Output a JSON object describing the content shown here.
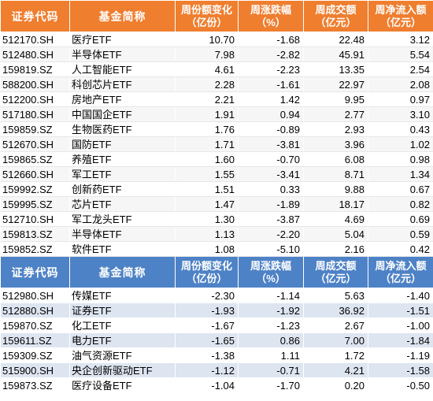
{
  "header1": {
    "code": "证券代码",
    "name": "基金简称",
    "share_change": "周份额变化（亿份）",
    "change_pct": "周涨跌幅（%）",
    "volume": "周成交额（亿元）",
    "net_inflow": "周净流入额（亿元）"
  },
  "rows1": [
    {
      "code": "512170.SH",
      "name": "医疗ETF",
      "share_change": "10.70",
      "change_pct": "-1.68",
      "volume": "22.48",
      "net_inflow": "3.12"
    },
    {
      "code": "512480.SH",
      "name": "半导体ETF",
      "share_change": "7.98",
      "change_pct": "-2.82",
      "volume": "45.91",
      "net_inflow": "5.54"
    },
    {
      "code": "159819.SZ",
      "name": "人工智能ETF",
      "share_change": "4.61",
      "change_pct": "-2.23",
      "volume": "13.35",
      "net_inflow": "2.54"
    },
    {
      "code": "588200.SH",
      "name": "科创芯片ETF",
      "share_change": "2.28",
      "change_pct": "-1.61",
      "volume": "22.97",
      "net_inflow": "2.08"
    },
    {
      "code": "512200.SH",
      "name": "房地产ETF",
      "share_change": "2.21",
      "change_pct": "1.42",
      "volume": "9.95",
      "net_inflow": "0.97"
    },
    {
      "code": "517180.SH",
      "name": "中国国企ETF",
      "share_change": "1.91",
      "change_pct": "0.94",
      "volume": "2.77",
      "net_inflow": "3.10"
    },
    {
      "code": "159859.SZ",
      "name": "生物医药ETF",
      "share_change": "1.76",
      "change_pct": "-0.89",
      "volume": "2.93",
      "net_inflow": "0.43"
    },
    {
      "code": "512670.SH",
      "name": "国防ETF",
      "share_change": "1.71",
      "change_pct": "-3.81",
      "volume": "3.96",
      "net_inflow": "1.02"
    },
    {
      "code": "159865.SZ",
      "name": "养殖ETF",
      "share_change": "1.60",
      "change_pct": "-0.70",
      "volume": "6.08",
      "net_inflow": "0.98"
    },
    {
      "code": "512660.SH",
      "name": "军工ETF",
      "share_change": "1.55",
      "change_pct": "-3.41",
      "volume": "8.71",
      "net_inflow": "1.34"
    },
    {
      "code": "159992.SZ",
      "name": "创新药ETF",
      "share_change": "1.51",
      "change_pct": "0.33",
      "volume": "9.88",
      "net_inflow": "0.67"
    },
    {
      "code": "159995.SZ",
      "name": "芯片ETF",
      "share_change": "1.47",
      "change_pct": "-1.89",
      "volume": "18.17",
      "net_inflow": "0.82"
    },
    {
      "code": "512710.SH",
      "name": "军工龙头ETF",
      "share_change": "1.30",
      "change_pct": "-3.87",
      "volume": "4.69",
      "net_inflow": "0.69"
    },
    {
      "code": "159813.SZ",
      "name": "半导体ETF",
      "share_change": "1.13",
      "change_pct": "-2.20",
      "volume": "5.04",
      "net_inflow": "0.59"
    },
    {
      "code": "159852.SZ",
      "name": "软件ETF",
      "share_change": "1.08",
      "change_pct": "-5.10",
      "volume": "2.16",
      "net_inflow": "0.42"
    }
  ],
  "header2": {
    "code": "证券代码",
    "name": "基金简称",
    "share_change": "周份额变化（亿份）",
    "change_pct": "周涨跌幅（%）",
    "volume": "周成交额（亿元）",
    "net_inflow": "周净流入额（亿元）"
  },
  "rows2": [
    {
      "code": "512980.SH",
      "name": "传媒ETF",
      "share_change": "-2.30",
      "change_pct": "-1.14",
      "volume": "5.63",
      "net_inflow": "-1.40"
    },
    {
      "code": "512880.SH",
      "name": "证券ETF",
      "share_change": "-1.93",
      "change_pct": "-1.92",
      "volume": "36.92",
      "net_inflow": "-1.51"
    },
    {
      "code": "159870.SZ",
      "name": "化工ETF",
      "share_change": "-1.67",
      "change_pct": "-1.23",
      "volume": "2.67",
      "net_inflow": "-1.00"
    },
    {
      "code": "159611.SZ",
      "name": "电力ETF",
      "share_change": "-1.65",
      "change_pct": "0.86",
      "volume": "7.00",
      "net_inflow": "-1.84"
    },
    {
      "code": "159309.SZ",
      "name": "油气资源ETF",
      "share_change": "-1.38",
      "change_pct": "1.11",
      "volume": "1.72",
      "net_inflow": "-1.19"
    },
    {
      "code": "515900.SH",
      "name": "央企创新驱动ETF",
      "share_change": "-1.12",
      "change_pct": "-0.71",
      "volume": "4.21",
      "net_inflow": "-1.58"
    },
    {
      "code": "159873.SZ",
      "name": "医疗设备ETF",
      "share_change": "-1.04",
      "change_pct": "-1.70",
      "volume": "0.20",
      "net_inflow": "-0.50"
    }
  ],
  "colors": {
    "header_top": "#ef7e2f",
    "header_bottom": "#4e82c6",
    "stripe": "#dde5f1"
  }
}
